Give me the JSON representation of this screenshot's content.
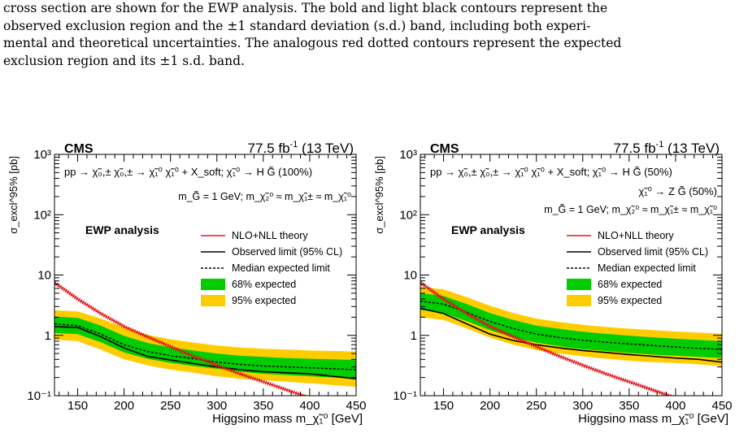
{
  "caption": {
    "lines": [
      "cross section are shown for the EWP analysis. The bold and light black contours represent the",
      "observed exclusion region and the ±1 standard deviation (s.d.) band, including both experi-",
      "mental and theoretical uncertainties. The analogous red dotted contours represent the expected",
      "exclusion region and its ±1 s.d. band."
    ]
  },
  "colors": {
    "theory": "#e0171b",
    "band68": "#00cc00",
    "band95": "#ffcc00",
    "observed": "#000000"
  },
  "chart_data": [
    {
      "type": "line",
      "experiment": "CMS",
      "lumi": "77.5 fb",
      "lumi_sup": "-1",
      "energy": "(13 TeV)",
      "process_line1": "pp → χ̃₀,± χ̃₀,± → χ̃₁⁰ χ̃₁⁰ + X_soft; χ̃₁⁰ → H G̃ (100%)",
      "process_line2": "",
      "mass_line": "m_G̃ = 1 GeV;  m_χ̃₂⁰ ≈ m_χ̃₁± ≈ m_χ̃₁⁰",
      "analysis_label": "EWP analysis",
      "ylabel": "σ_excl^95% [pb]",
      "xlabel": "Higgsino mass m_χ̃₁⁰ [GeV]",
      "xlim": [
        125,
        450
      ],
      "ylim": [
        0.1,
        1000
      ],
      "yscale": "log",
      "xticks": [
        "150",
        "200",
        "250",
        "300",
        "350",
        "400",
        "450"
      ],
      "yticks": [
        "10⁻¹",
        "1",
        "10",
        "10²",
        "10³"
      ],
      "legend": [
        "NLO+NLL theory",
        "Observed limit (95% CL)",
        "Median expected limit",
        "68% expected",
        "95% expected"
      ],
      "x": [
        125,
        150,
        175,
        200,
        225,
        250,
        275,
        300,
        325,
        350,
        375,
        400,
        425,
        450
      ],
      "theory": [
        7.5,
        4.0,
        2.3,
        1.4,
        0.95,
        0.65,
        0.45,
        0.32,
        0.23,
        0.17,
        0.125,
        0.092,
        0.07,
        0.054
      ],
      "observed": [
        1.4,
        1.35,
        0.95,
        0.62,
        0.45,
        0.39,
        0.34,
        0.3,
        0.27,
        0.25,
        0.24,
        0.23,
        0.21,
        0.19
      ],
      "expected": [
        1.55,
        1.45,
        1.05,
        0.7,
        0.54,
        0.46,
        0.41,
        0.36,
        0.33,
        0.31,
        0.3,
        0.29,
        0.28,
        0.27
      ],
      "band68_low": [
        1.1,
        1.05,
        0.77,
        0.52,
        0.41,
        0.35,
        0.31,
        0.28,
        0.25,
        0.23,
        0.22,
        0.21,
        0.2,
        0.19
      ],
      "band68_high": [
        2.05,
        1.95,
        1.45,
        0.98,
        0.75,
        0.63,
        0.56,
        0.5,
        0.46,
        0.44,
        0.42,
        0.41,
        0.4,
        0.39
      ],
      "band95_low": [
        0.85,
        0.8,
        0.58,
        0.4,
        0.32,
        0.27,
        0.24,
        0.21,
        0.19,
        0.18,
        0.17,
        0.16,
        0.15,
        0.14
      ],
      "band95_high": [
        2.6,
        2.5,
        1.9,
        1.35,
        1.02,
        0.86,
        0.76,
        0.68,
        0.63,
        0.6,
        0.58,
        0.56,
        0.55,
        0.54
      ]
    },
    {
      "type": "line",
      "experiment": "CMS",
      "lumi": "77.5 fb",
      "lumi_sup": "-1",
      "energy": "(13 TeV)",
      "process_line1": "pp → χ̃₀,± χ̃₀,± → χ̃₁⁰ χ̃₁⁰ + X_soft; χ̃₁⁰ → H G̃ (50%)",
      "process_line2": "χ̃₁⁰ → Z G̃ (50%)",
      "mass_line": "m_G̃ = 1 GeV;  m_χ̃₂⁰ ≈ m_χ̃₁± ≈ m_χ̃₁⁰",
      "analysis_label": "EWP analysis",
      "ylabel": "σ_excl^95% [pb]",
      "xlabel": "Higgsino mass m_χ̃₁⁰ [GeV]",
      "xlim": [
        125,
        450
      ],
      "ylim": [
        0.1,
        1000
      ],
      "yscale": "log",
      "xticks": [
        "150",
        "200",
        "250",
        "300",
        "350",
        "400",
        "450"
      ],
      "yticks": [
        "10⁻¹",
        "1",
        "10",
        "10²",
        "10³"
      ],
      "legend": [
        "NLO+NLL theory",
        "Observed limit (95% CL)",
        "Median expected limit",
        "68% expected",
        "95% expected"
      ],
      "x": [
        125,
        150,
        175,
        200,
        225,
        250,
        275,
        300,
        325,
        350,
        375,
        400,
        425,
        450
      ],
      "theory": [
        7.5,
        4.0,
        2.3,
        1.4,
        0.95,
        0.65,
        0.45,
        0.32,
        0.23,
        0.17,
        0.125,
        0.092,
        0.07,
        0.054
      ],
      "observed": [
        2.8,
        2.3,
        1.55,
        1.05,
        0.82,
        0.7,
        0.62,
        0.56,
        0.52,
        0.48,
        0.45,
        0.42,
        0.4,
        0.36
      ],
      "expected": [
        3.7,
        3.3,
        2.4,
        1.7,
        1.3,
        1.05,
        0.92,
        0.83,
        0.77,
        0.72,
        0.68,
        0.64,
        0.61,
        0.58
      ],
      "band68_low": [
        2.65,
        2.35,
        1.72,
        1.22,
        0.93,
        0.76,
        0.66,
        0.59,
        0.55,
        0.51,
        0.48,
        0.46,
        0.44,
        0.42
      ],
      "band68_high": [
        5.0,
        4.5,
        3.3,
        2.35,
        1.8,
        1.45,
        1.28,
        1.15,
        1.06,
        0.99,
        0.93,
        0.88,
        0.84,
        0.8
      ],
      "band95_low": [
        2.0,
        1.8,
        1.3,
        0.92,
        0.7,
        0.57,
        0.5,
        0.45,
        0.41,
        0.38,
        0.36,
        0.35,
        0.33,
        0.31
      ],
      "band95_high": [
        6.4,
        5.8,
        4.3,
        3.1,
        2.35,
        1.9,
        1.66,
        1.5,
        1.38,
        1.29,
        1.22,
        1.16,
        1.11,
        1.07
      ]
    }
  ]
}
